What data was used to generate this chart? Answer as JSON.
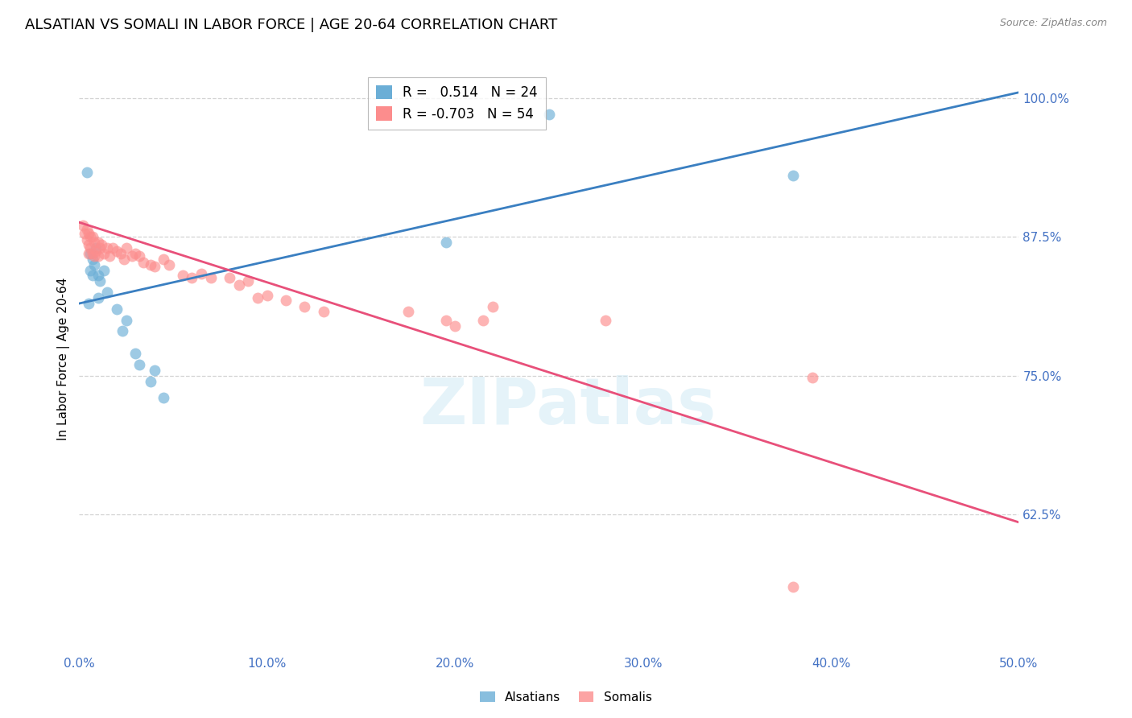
{
  "title": "ALSATIAN VS SOMALI IN LABOR FORCE | AGE 20-64 CORRELATION CHART",
  "source": "Source: ZipAtlas.com",
  "ylabel_label": "In Labor Force | Age 20-64",
  "xlim": [
    0.0,
    0.5
  ],
  "ylim": [
    0.5,
    1.03
  ],
  "yticks": [
    0.625,
    0.75,
    0.875,
    1.0
  ],
  "ytick_labels": [
    "62.5%",
    "75.0%",
    "87.5%",
    "100.0%"
  ],
  "xticks": [
    0.0,
    0.1,
    0.2,
    0.3,
    0.4,
    0.5
  ],
  "xtick_labels": [
    "0.0%",
    "10.0%",
    "20.0%",
    "30.0%",
    "40.0%",
    "50.0%"
  ],
  "alsatian_color": "#6baed6",
  "somali_color": "#fc8d8d",
  "alsatian_line_color": "#3a7fc1",
  "somali_line_color": "#e8507a",
  "alsatian_R": 0.514,
  "alsatian_N": 24,
  "somali_R": -0.703,
  "somali_N": 54,
  "alsatian_line_x0": 0.0,
  "alsatian_line_y0": 0.815,
  "alsatian_line_x1": 0.5,
  "alsatian_line_y1": 1.005,
  "somali_line_x0": 0.0,
  "somali_line_y0": 0.888,
  "somali_line_x1": 0.5,
  "somali_line_y1": 0.618,
  "alsatian_points": [
    [
      0.004,
      0.933
    ],
    [
      0.005,
      0.815
    ],
    [
      0.006,
      0.845
    ],
    [
      0.006,
      0.86
    ],
    [
      0.007,
      0.84
    ],
    [
      0.007,
      0.855
    ],
    [
      0.008,
      0.85
    ],
    [
      0.009,
      0.865
    ],
    [
      0.01,
      0.84
    ],
    [
      0.01,
      0.82
    ],
    [
      0.011,
      0.835
    ],
    [
      0.013,
      0.845
    ],
    [
      0.015,
      0.825
    ],
    [
      0.02,
      0.81
    ],
    [
      0.023,
      0.79
    ],
    [
      0.025,
      0.8
    ],
    [
      0.03,
      0.77
    ],
    [
      0.032,
      0.76
    ],
    [
      0.038,
      0.745
    ],
    [
      0.04,
      0.755
    ],
    [
      0.045,
      0.73
    ],
    [
      0.195,
      0.87
    ],
    [
      0.25,
      0.985
    ],
    [
      0.38,
      0.93
    ]
  ],
  "somali_points": [
    [
      0.002,
      0.885
    ],
    [
      0.003,
      0.878
    ],
    [
      0.004,
      0.882
    ],
    [
      0.004,
      0.872
    ],
    [
      0.005,
      0.878
    ],
    [
      0.005,
      0.868
    ],
    [
      0.005,
      0.86
    ],
    [
      0.006,
      0.875
    ],
    [
      0.006,
      0.865
    ],
    [
      0.007,
      0.875
    ],
    [
      0.007,
      0.86
    ],
    [
      0.008,
      0.87
    ],
    [
      0.008,
      0.858
    ],
    [
      0.009,
      0.862
    ],
    [
      0.01,
      0.87
    ],
    [
      0.01,
      0.858
    ],
    [
      0.011,
      0.865
    ],
    [
      0.012,
      0.868
    ],
    [
      0.013,
      0.86
    ],
    [
      0.015,
      0.865
    ],
    [
      0.016,
      0.858
    ],
    [
      0.018,
      0.865
    ],
    [
      0.02,
      0.862
    ],
    [
      0.022,
      0.86
    ],
    [
      0.024,
      0.855
    ],
    [
      0.025,
      0.865
    ],
    [
      0.028,
      0.858
    ],
    [
      0.03,
      0.86
    ],
    [
      0.032,
      0.858
    ],
    [
      0.034,
      0.852
    ],
    [
      0.038,
      0.85
    ],
    [
      0.04,
      0.848
    ],
    [
      0.045,
      0.855
    ],
    [
      0.048,
      0.85
    ],
    [
      0.055,
      0.84
    ],
    [
      0.06,
      0.838
    ],
    [
      0.065,
      0.842
    ],
    [
      0.07,
      0.838
    ],
    [
      0.08,
      0.838
    ],
    [
      0.085,
      0.832
    ],
    [
      0.09,
      0.835
    ],
    [
      0.095,
      0.82
    ],
    [
      0.1,
      0.822
    ],
    [
      0.11,
      0.818
    ],
    [
      0.12,
      0.812
    ],
    [
      0.13,
      0.808
    ],
    [
      0.175,
      0.808
    ],
    [
      0.195,
      0.8
    ],
    [
      0.2,
      0.795
    ],
    [
      0.215,
      0.8
    ],
    [
      0.22,
      0.812
    ],
    [
      0.28,
      0.8
    ],
    [
      0.39,
      0.748
    ],
    [
      0.38,
      0.56
    ]
  ],
  "watermark_text": "ZIPatlas",
  "background_color": "#ffffff",
  "grid_color": "#c8c8c8",
  "tick_label_color": "#4472c4",
  "title_fontsize": 13,
  "axis_label_fontsize": 11,
  "tick_fontsize": 11,
  "source_fontsize": 9
}
